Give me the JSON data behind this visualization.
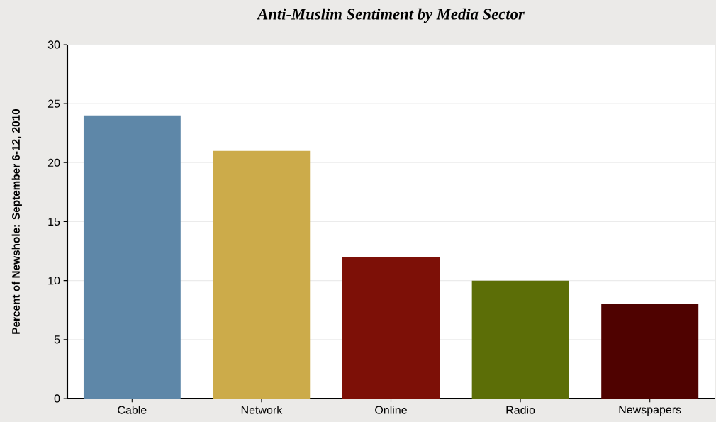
{
  "chart_data": {
    "type": "bar",
    "title": "Anti-Muslim Sentiment by Media Sector",
    "ylabel": "Percent of Newshole: September 6-12, 2010",
    "categories": [
      "Cable",
      "Network",
      "Online",
      "Radio",
      "Newspapers"
    ],
    "values": [
      24,
      21,
      12,
      10,
      8
    ],
    "colors": [
      "#5e87a8",
      "#ccab4a",
      "#7d1007",
      "#5c6e07",
      "#4f0200"
    ],
    "ylim": [
      0,
      30
    ],
    "yticks": [
      0,
      5,
      10,
      15,
      20,
      25,
      30
    ],
    "grid": "y"
  }
}
